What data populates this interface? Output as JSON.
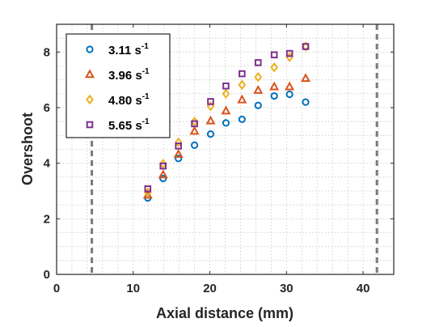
{
  "chart_data": {
    "type": "scatter",
    "xlabel": "Axial distance (mm)",
    "ylabel": "Overshoot",
    "xlim": [
      0,
      44
    ],
    "ylim": [
      0,
      9
    ],
    "xticks": [
      0,
      10,
      20,
      30,
      40
    ],
    "yticks": [
      0,
      2,
      4,
      6,
      8
    ],
    "grid": "minor dotted",
    "legend_position": "top-left",
    "reference_lines_x": [
      4.6,
      41.8
    ],
    "x": [
      11.9,
      13.9,
      15.9,
      18.0,
      20.1,
      22.1,
      24.2,
      26.3,
      28.4,
      30.4,
      32.5
    ],
    "series": [
      {
        "name": "3.11",
        "unit": "s",
        "exponent": "-1",
        "color": "#0072BD",
        "marker": "circle",
        "values": [
          2.75,
          3.45,
          4.17,
          4.65,
          5.05,
          5.45,
          5.58,
          6.08,
          6.42,
          6.48,
          6.2
        ]
      },
      {
        "name": "3.96",
        "unit": "s",
        "exponent": "-1",
        "color": "#D95319",
        "marker": "triangle",
        "values": [
          2.85,
          3.58,
          4.32,
          5.15,
          5.52,
          5.88,
          6.28,
          6.62,
          6.75,
          6.75,
          7.05
        ]
      },
      {
        "name": "4.80",
        "unit": "s",
        "exponent": "-1",
        "color": "#EDB120",
        "marker": "diamond",
        "values": [
          2.95,
          3.98,
          4.75,
          5.5,
          6.05,
          6.5,
          6.82,
          7.1,
          7.45,
          7.82,
          8.2
        ]
      },
      {
        "name": "5.65",
        "unit": "s",
        "exponent": "-1",
        "color": "#7E2F8E",
        "marker": "square",
        "values": [
          3.08,
          3.9,
          4.62,
          5.42,
          6.22,
          6.78,
          7.22,
          7.62,
          7.9,
          7.95,
          8.2
        ]
      }
    ]
  }
}
